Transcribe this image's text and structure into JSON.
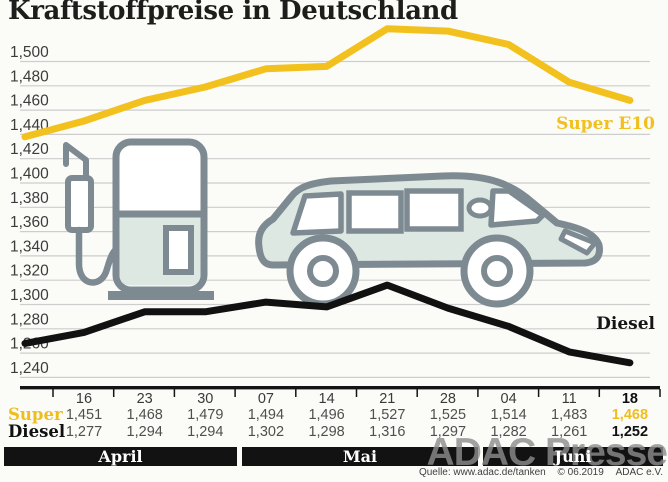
{
  "title": "Kraftstoffpreise in Deutschland",
  "watermark": "ADAC Presse",
  "source": {
    "quelle": "Quelle: www.adac.de/tanken",
    "copyright": "© 06.2019",
    "org": "ADAC e.V."
  },
  "icons": {
    "fuel_pump": "fuel-pump-icon",
    "car": "car-icon"
  },
  "colors": {
    "accent_yellow": "#F3C11D",
    "line_black": "#111111",
    "icon_outline": "#7E8A92",
    "icon_fill": "#DDE8E3",
    "gridline": "#CDCDCD",
    "month_bar": "#121212"
  },
  "months": [
    "April",
    "Mai",
    "Juni"
  ],
  "table": {
    "dates": [
      "16",
      "23",
      "30",
      "07",
      "14",
      "21",
      "28",
      "04",
      "11",
      "18"
    ],
    "rows": [
      {
        "label": "Super",
        "color": "#F0BE1C",
        "values": [
          "1,451",
          "1,468",
          "1,479",
          "1,494",
          "1,496",
          "1,527",
          "1,525",
          "1,514",
          "1,483",
          "1,468"
        ]
      },
      {
        "label": "Diesel",
        "color": "#111111",
        "values": [
          "1,277",
          "1,294",
          "1,294",
          "1,302",
          "1,298",
          "1,316",
          "1,297",
          "1,282",
          "1,261",
          "1,252"
        ]
      }
    ]
  },
  "chart_data": {
    "type": "line",
    "title": "Kraftstoffpreise in Deutschland",
    "x_labels": [
      "16",
      "23",
      "30",
      "07",
      "14",
      "21",
      "28",
      "04",
      "11",
      "18"
    ],
    "x_months": [
      "April",
      "Mai",
      "Juni"
    ],
    "ylim": [
      1.24,
      1.53
    ],
    "grid": true,
    "legend_position": "inline-right",
    "yticks": [
      {
        "label": "1,240",
        "value": 1.24
      },
      {
        "label": "1,260",
        "value": 1.26
      },
      {
        "label": "1,280",
        "value": 1.28
      },
      {
        "label": "1,300",
        "value": 1.3
      },
      {
        "label": "1,320",
        "value": 1.32
      },
      {
        "label": "1,340",
        "value": 1.34
      },
      {
        "label": "1,360",
        "value": 1.36
      },
      {
        "label": "1,380",
        "value": 1.38
      },
      {
        "label": "1,400",
        "value": 1.4
      },
      {
        "label": "1,420",
        "value": 1.42
      },
      {
        "label": "1,440",
        "value": 1.44
      },
      {
        "label": "1,460",
        "value": 1.46
      },
      {
        "label": "1,480",
        "value": 1.48
      },
      {
        "label": "1,500",
        "value": 1.5
      }
    ],
    "series": [
      {
        "name": "Super E10",
        "color": "#F3C11D",
        "values": [
          1.451,
          1.468,
          1.479,
          1.494,
          1.496,
          1.527,
          1.525,
          1.514,
          1.483,
          1.468
        ],
        "lead_in": 1.438
      },
      {
        "name": "Diesel",
        "color": "#111111",
        "values": [
          1.277,
          1.294,
          1.294,
          1.302,
          1.298,
          1.316,
          1.297,
          1.282,
          1.261,
          1.252
        ],
        "lead_in": 1.268
      }
    ]
  }
}
